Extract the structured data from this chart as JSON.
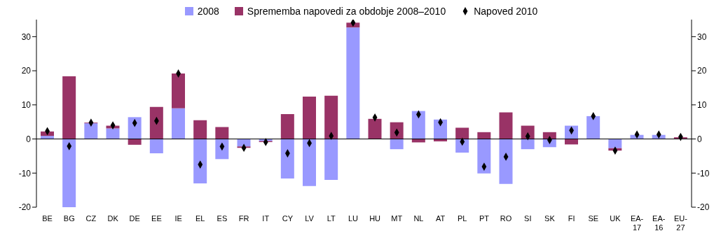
{
  "chart_data": {
    "type": "bar",
    "stacked": true,
    "legend": "top",
    "categories": [
      "BE",
      "BG",
      "CZ",
      "DK",
      "DE",
      "EE",
      "IE",
      "EL",
      "ES",
      "FR",
      "IT",
      "CY",
      "LV",
      "LT",
      "LU",
      "HU",
      "MT",
      "NL",
      "AT",
      "PL",
      "PT",
      "RO",
      "SI",
      "SK",
      "FI",
      "SE",
      "UK",
      "EA-17",
      "EA-16",
      "EU-27"
    ],
    "series": [
      {
        "name": "2008",
        "color": "#9999ff",
        "values": [
          0.9,
          -20,
          4.6,
          3.1,
          6.4,
          -4.2,
          9.0,
          -13.0,
          -5.9,
          -2.2,
          -0.6,
          -11.6,
          -13.8,
          -12.0,
          32.7,
          null,
          -3.0,
          8.2,
          5.7,
          -4.0,
          -10.1,
          -13.2,
          -3.0,
          -2.4,
          3.9,
          6.7,
          -2.7,
          1.2,
          1.2,
          null
        ]
      },
      {
        "name": "Sprememba napovedi za obdobje 2008–2010",
        "color": "#993366",
        "values": [
          1.3,
          18.4,
          0.2,
          0.8,
          -1.7,
          9.4,
          10.2,
          5.5,
          3.5,
          -0.4,
          -0.3,
          7.3,
          12.4,
          12.7,
          1.4,
          5.9,
          4.9,
          -1.0,
          -0.7,
          3.3,
          2.0,
          7.8,
          3.9,
          2.0,
          -1.6,
          0,
          -0.7,
          null,
          null,
          0.5
        ]
      },
      {
        "name": "Napoved 2010",
        "type": "scatter",
        "color": "#000000",
        "marker": "diamond",
        "values": [
          2.3,
          -2.1,
          4.8,
          4.0,
          4.7,
          5.3,
          19.2,
          -7.5,
          -2.2,
          -2.6,
          -0.9,
          -4.2,
          -1.2,
          0.9,
          34.1,
          6.3,
          1.9,
          7.2,
          4.9,
          -0.8,
          -8.1,
          -5.2,
          0.8,
          -0.3,
          2.5,
          6.7,
          -3.4,
          1.3,
          1.3,
          0.6
        ]
      }
    ],
    "ylim": [
      -20,
      35
    ],
    "yticks": [
      -20,
      -10,
      0,
      10,
      20,
      30
    ],
    "y2lim": [
      -20,
      35
    ],
    "y2ticks": [
      -20,
      -10,
      0,
      10,
      20,
      30
    ]
  }
}
